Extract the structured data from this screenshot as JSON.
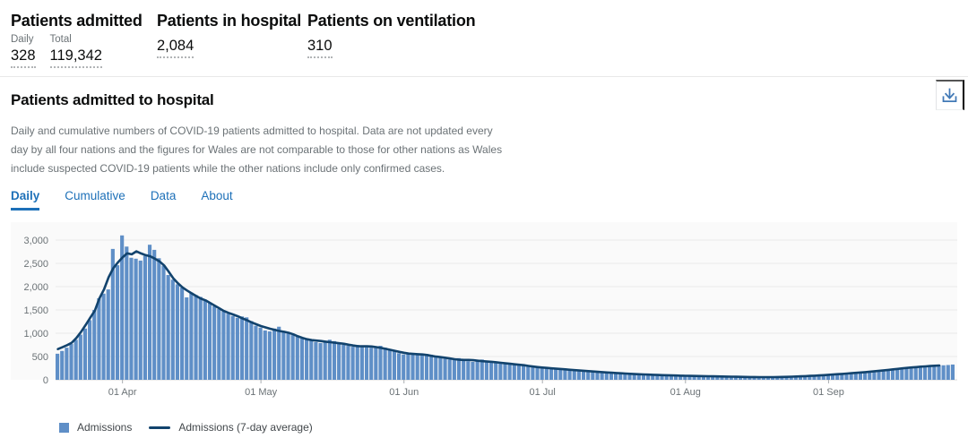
{
  "colors": {
    "accent_blue": "#1d70b8",
    "bar_blue": "#5f8fc7",
    "line_navy": "#12436d",
    "text_gray": "#6b7276"
  },
  "stats": {
    "admitted": {
      "title": "Patients admitted",
      "daily_label": "Daily",
      "daily_value": "328",
      "total_label": "Total",
      "total_value": "119,342"
    },
    "in_hospital": {
      "title": "Patients in hospital",
      "value": "2,084"
    },
    "ventilation": {
      "title": "Patients on ventilation",
      "value": "310"
    }
  },
  "card": {
    "title": "Patients admitted to hospital",
    "description": "Daily and cumulative numbers of COVID-19 patients admitted to hospital. Data are not updated every day by all four nations and the figures for Wales are not comparable to those for other nations as Wales include suspected COVID-19 patients while the other nations include only confirmed cases.",
    "tabs": [
      {
        "label": "Daily",
        "active": true
      },
      {
        "label": "Cumulative",
        "active": false
      },
      {
        "label": "Data",
        "active": false
      },
      {
        "label": "About",
        "active": false
      }
    ],
    "download_icon": "download-icon"
  },
  "chart_data": {
    "type": "bar",
    "title": "Patients admitted to hospital (daily)",
    "y_ticks": [
      0,
      500,
      1000,
      1500,
      2000,
      2500,
      3000
    ],
    "y_tick_labels": [
      "0",
      "500",
      "1,000",
      "1,500",
      "2,000",
      "2,500",
      "3,000"
    ],
    "ylim": [
      0,
      3100
    ],
    "x_tick_labels": [
      "01 Apr",
      "01 May",
      "01 Jun",
      "01 Jul",
      "01 Aug",
      "01 Sep"
    ],
    "x_tick_day_indices": [
      14,
      44,
      75,
      105,
      136,
      167
    ],
    "grid": true,
    "legend_position": "bottom",
    "legend": [
      "Admissions",
      "Admissions (7-day average)"
    ],
    "series": [
      {
        "name": "Admissions",
        "type": "bar",
        "color": "#5f8fc7",
        "values": [
          560,
          620,
          690,
          770,
          860,
          970,
          1100,
          1280,
          1500,
          1750,
          1850,
          1940,
          2810,
          2460,
          3100,
          2860,
          2620,
          2600,
          2560,
          2660,
          2900,
          2790,
          2610,
          2450,
          2250,
          2150,
          2050,
          1980,
          1770,
          1870,
          1820,
          1780,
          1720,
          1650,
          1580,
          1520,
          1470,
          1420,
          1370,
          1330,
          1360,
          1340,
          1260,
          1160,
          1120,
          1060,
          1040,
          1100,
          1140,
          1050,
          990,
          960,
          930,
          900,
          870,
          840,
          810,
          790,
          830,
          860,
          830,
          780,
          750,
          730,
          710,
          750,
          730,
          700,
          690,
          720,
          730,
          690,
          650,
          610,
          570,
          545,
          560,
          575,
          550,
          530,
          555,
          540,
          505,
          470,
          450,
          435,
          450,
          465,
          430,
          400,
          385,
          420,
          435,
          410,
          385,
          365,
          350,
          340,
          360,
          350,
          330,
          310,
          290,
          280,
          268,
          258,
          250,
          256,
          242,
          230,
          220,
          212,
          216,
          202,
          192,
          186,
          178,
          170,
          164,
          158,
          150,
          145,
          140,
          134,
          128,
          124,
          118,
          114,
          110,
          107,
          104,
          100,
          97,
          94,
          91,
          89,
          86,
          84,
          82,
          80,
          78,
          76,
          74,
          73,
          71,
          70,
          68,
          66,
          64,
          62,
          60,
          58,
          57,
          56,
          55,
          56,
          58,
          61,
          64,
          67,
          70,
          74,
          78,
          83,
          88,
          94,
          100,
          107,
          113,
          120,
          127,
          134,
          141,
          149,
          157,
          165,
          174,
          183,
          193,
          203,
          213,
          224,
          235,
          246,
          257,
          267,
          276,
          284,
          291,
          297,
          302,
          307,
          312,
          318,
          328
        ]
      },
      {
        "name": "Admissions (7-day average)",
        "type": "line",
        "color": "#12436d",
        "derived": "7-day centered moving average of Admissions, line stops 3 days before the latest bar"
      }
    ]
  }
}
